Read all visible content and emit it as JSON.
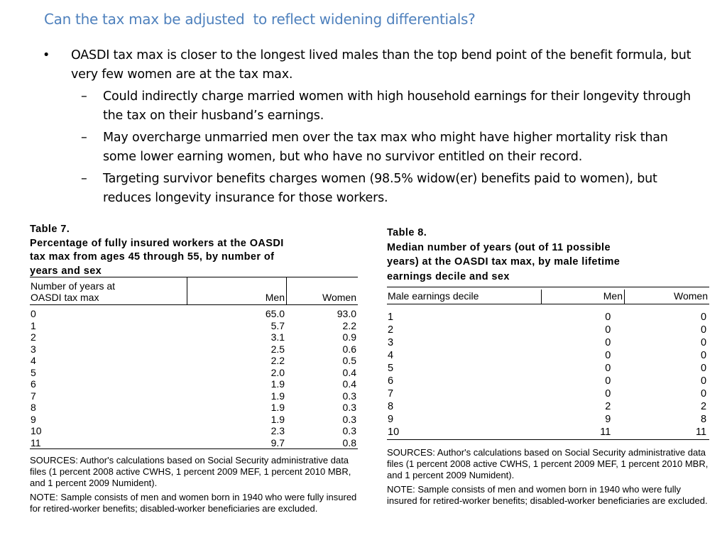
{
  "title": "Can the tax max be adjusted  to reflect widening differentials?",
  "bullets": {
    "level1": {
      "marker": "•",
      "text": "OASDI tax max is closer to the longest lived males than the top bend point of the benefit formula, but very few women are at the tax max."
    },
    "level2": [
      {
        "marker": "–",
        "text": "Could indirectly charge married women with high household earnings for their longevity through the tax on their husband’s earnings."
      },
      {
        "marker": "–",
        "text": "May overcharge unmarried men over the tax max who might have higher mortality risk than some lower earning women, but who have no survivor entitled on their record."
      },
      {
        "marker": "–",
        "text": "Targeting survivor benefits charges women (98.5% widow(er) benefits paid to women), but reduces longevity insurance for those workers."
      }
    ]
  },
  "table7": {
    "caption_label": "Table 7.",
    "caption_lines": [
      "Percentage of fully insured workers at the OASDI",
      "tax max from ages 45 through 55, by number of",
      "years and sex"
    ],
    "header_label_lines": [
      "Number of years at",
      "OASDI tax max"
    ],
    "header_men": "Men",
    "header_women": "Women",
    "rows": [
      {
        "label": "0",
        "men": "65.0",
        "women": "93.0"
      },
      {
        "label": "1",
        "men": "5.7",
        "women": "2.2"
      },
      {
        "label": "2",
        "men": "3.1",
        "women": "0.9"
      },
      {
        "label": "3",
        "men": "2.5",
        "women": "0.6"
      },
      {
        "label": "4",
        "men": "2.2",
        "women": "0.5"
      },
      {
        "label": "5",
        "men": "2.0",
        "women": "0.4"
      },
      {
        "label": "6",
        "men": "1.9",
        "women": "0.4"
      },
      {
        "label": "7",
        "men": "1.9",
        "women": "0.3"
      },
      {
        "label": "8",
        "men": "1.9",
        "women": "0.3"
      },
      {
        "label": "9",
        "men": "1.9",
        "women": "0.3"
      },
      {
        "label": "10",
        "men": "2.3",
        "women": "0.3"
      },
      {
        "label": "11",
        "men": "9.7",
        "women": "0.8"
      }
    ],
    "sources": "SOURCES: Author's calculations based on Social Security administrative data files (1 percent 2008 active CWHS, 1 percent 2009 MEF, 1 percent 2010 MBR, and 1 percent 2009 Numident).",
    "note": "NOTE: Sample consists of men and women born in 1940 who were fully insured for retired-worker benefits; disabled-worker beneficiaries are excluded."
  },
  "table8": {
    "caption_label": "Table 8.",
    "caption_lines": [
      "Median number of years (out of 11 possible",
      "years) at the OASDI tax max, by male lifetime",
      "earnings decile and sex"
    ],
    "header_label": "Male earnings decile",
    "header_men": "Men",
    "header_women": "Women",
    "rows": [
      {
        "label": "1",
        "men": "0",
        "women": "0"
      },
      {
        "label": "2",
        "men": "0",
        "women": "0"
      },
      {
        "label": "3",
        "men": "0",
        "women": "0"
      },
      {
        "label": "4",
        "men": "0",
        "women": "0"
      },
      {
        "label": "5",
        "men": "0",
        "women": "0"
      },
      {
        "label": "6",
        "men": "0",
        "women": "0"
      },
      {
        "label": "7",
        "men": "0",
        "women": "0"
      },
      {
        "label": "8",
        "men": "2",
        "women": "2"
      },
      {
        "label": "9",
        "men": "9",
        "women": "8"
      },
      {
        "label": "10",
        "men": "11",
        "women": "11"
      }
    ],
    "sources": "SOURCES: Author's calculations based on Social Security administrative data files (1 percent 2008 active CWHS, 1 percent 2009 MEF, 1 percent 2010 MBR, and 1 percent 2009 Numident).",
    "note": "NOTE: Sample consists of men and women born in 1940 who were fully insured for retired-worker benefits; disabled-worker beneficiaries are excluded."
  }
}
